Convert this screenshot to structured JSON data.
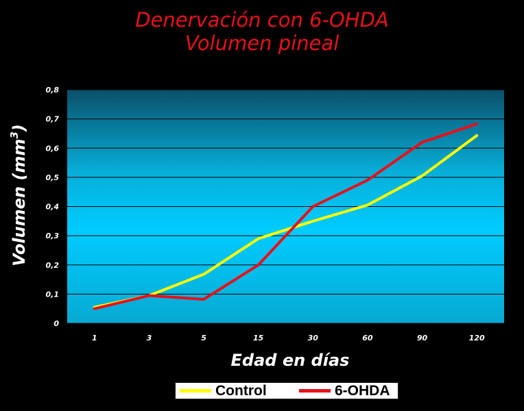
{
  "chart_data": {
    "type": "line",
    "title": "Denervación con 6-OHDA",
    "subtitle": "Volumen pineal",
    "xlabel": "Edad en días",
    "ylabel": "Volumen (mm",
    "ylabel_sup": "3",
    "ylabel_close": ")",
    "categories": [
      "1",
      "3",
      "5",
      "15",
      "30",
      "60",
      "90",
      "120"
    ],
    "ylim": [
      0,
      0.8
    ],
    "yticks": [
      "0",
      "0,1",
      "0,2",
      "0,3",
      "0,4",
      "0,5",
      "0,6",
      "0,7",
      "0,8"
    ],
    "grid": true,
    "legend_position": "bottom",
    "series": [
      {
        "name": "Control",
        "color": "#ffff00",
        "values": [
          0.055,
          0.095,
          0.168,
          0.29,
          0.35,
          0.405,
          0.505,
          0.643
        ]
      },
      {
        "name": "6-OHDA",
        "color": "#e8101a",
        "values": [
          0.05,
          0.095,
          0.082,
          0.2,
          0.4,
          0.49,
          0.62,
          0.683
        ]
      }
    ]
  }
}
